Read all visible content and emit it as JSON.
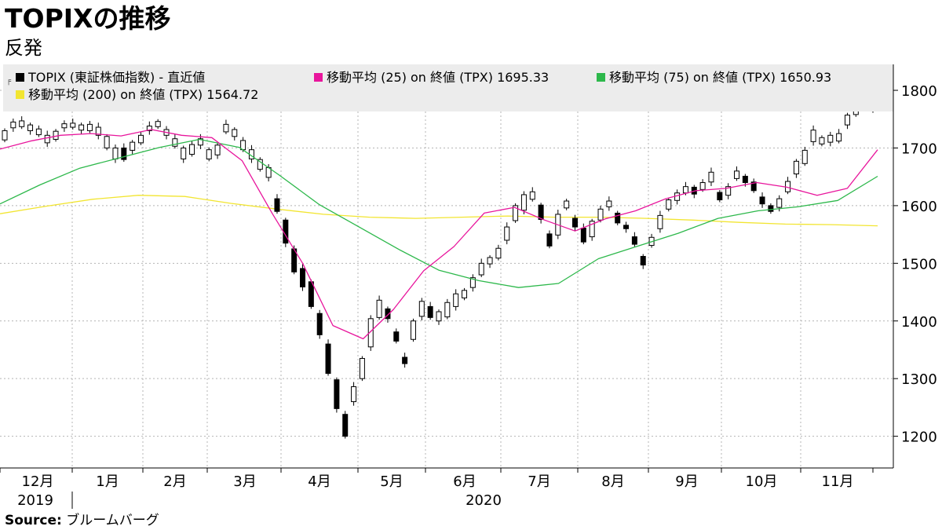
{
  "title": "TOPIXの推移",
  "subtitle": "反発",
  "source": {
    "label": "Source:",
    "name": "ブルームバーグ"
  },
  "colors": {
    "candle": "#000000",
    "ma25": "#e8159c",
    "ma75": "#2db84b",
    "ma200": "#f2e531",
    "grid": "#b4b4b4",
    "legend_bg": "#ececec"
  },
  "legend": [
    {
      "label": "TOPIX (東証株価指数) - 直近値",
      "color": "#000000"
    },
    {
      "label": "移動平均 (25)  on 終値 (TPX) 1695.33",
      "color": "#e8159c"
    },
    {
      "label": "移動平均 (75)  on 終値 (TPX) 1650.93",
      "color": "#2db84b"
    },
    {
      "label": "移動平均 (200)  on 終値 (TPX)  1564.72",
      "color": "#f2e531"
    }
  ],
  "chart_data": {
    "type": "line",
    "title": "TOPIXの推移",
    "subtitle": "反発",
    "x_ticks": [
      "12月",
      "1月",
      "2月",
      "3月",
      "4月",
      "5月",
      "6月",
      "7月",
      "8月",
      "9月",
      "10月",
      "11月"
    ],
    "year_labels": [
      "2019",
      "2020"
    ],
    "y_ticks": [
      1200,
      1300,
      1400,
      1500,
      1600,
      1700,
      1800
    ],
    "ylim": [
      1145,
      1845
    ],
    "y_axis_side": "right",
    "grid": true,
    "legend_position": "top",
    "series": [
      {
        "name": "TOPIX (東証株価指数) - 直近値",
        "style": "candlestick",
        "values": [
          [
            1714,
            1730
          ],
          [
            1735,
            1745
          ],
          [
            1737,
            1747
          ],
          [
            1730,
            1740
          ],
          [
            1723,
            1733
          ],
          [
            1709,
            1722
          ],
          [
            1715,
            1729
          ],
          [
            1735,
            1742
          ],
          [
            1736,
            1743
          ],
          [
            1731,
            1740
          ],
          [
            1730,
            1741
          ],
          [
            1722,
            1736
          ],
          [
            1700,
            1720
          ],
          [
            1681,
            1700
          ],
          [
            1700,
            1680
          ],
          [
            1696,
            1710
          ],
          [
            1709,
            1722
          ],
          [
            1730,
            1738
          ],
          [
            1737,
            1746
          ],
          [
            1722,
            1732
          ],
          [
            1703,
            1716
          ],
          [
            1681,
            1700
          ],
          [
            1689,
            1706
          ],
          [
            1705,
            1716
          ],
          [
            1681,
            1697
          ],
          [
            1688,
            1705
          ],
          [
            1728,
            1741
          ],
          [
            1720,
            1732
          ],
          [
            1697,
            1713
          ],
          [
            1681,
            1697
          ],
          [
            1663,
            1680
          ],
          [
            1649,
            1666
          ],
          [
            1612,
            1590
          ],
          [
            1575,
            1535
          ],
          [
            1525,
            1485
          ],
          [
            1491,
            1459
          ],
          [
            1468,
            1425
          ],
          [
            1413,
            1376
          ],
          [
            1360,
            1309
          ],
          [
            1298,
            1248
          ],
          [
            1238,
            1200
          ],
          [
            1260,
            1286
          ],
          [
            1300,
            1335
          ],
          [
            1355,
            1404
          ],
          [
            1406,
            1436
          ],
          [
            1421,
            1404
          ],
          [
            1381,
            1365
          ],
          [
            1337,
            1326
          ],
          [
            1368,
            1400
          ],
          [
            1408,
            1434
          ],
          [
            1425,
            1406
          ],
          [
            1400,
            1416
          ],
          [
            1407,
            1432
          ],
          [
            1425,
            1447
          ],
          [
            1440,
            1453
          ],
          [
            1458,
            1475
          ],
          [
            1480,
            1500
          ],
          [
            1499,
            1510
          ],
          [
            1509,
            1526
          ],
          [
            1540,
            1563
          ],
          [
            1574,
            1600
          ],
          [
            1592,
            1619
          ],
          [
            1611,
            1624
          ],
          [
            1601,
            1576
          ],
          [
            1551,
            1530
          ],
          [
            1549,
            1585
          ],
          [
            1596,
            1608
          ],
          [
            1578,
            1563
          ],
          [
            1561,
            1537
          ],
          [
            1546,
            1573
          ],
          [
            1575,
            1594
          ],
          [
            1598,
            1608
          ],
          [
            1587,
            1570
          ],
          [
            1566,
            1560
          ],
          [
            1546,
            1533
          ],
          [
            1512,
            1497
          ],
          [
            1531,
            1545
          ],
          [
            1560,
            1583
          ],
          [
            1594,
            1610
          ],
          [
            1609,
            1622
          ],
          [
            1622,
            1633
          ],
          [
            1632,
            1620
          ],
          [
            1628,
            1640
          ],
          [
            1641,
            1658
          ],
          [
            1623,
            1610
          ],
          [
            1618,
            1633
          ],
          [
            1647,
            1660
          ],
          [
            1651,
            1640
          ],
          [
            1641,
            1626
          ],
          [
            1615,
            1603
          ],
          [
            1600,
            1590
          ],
          [
            1597,
            1612
          ],
          [
            1624,
            1642
          ],
          [
            1655,
            1677
          ],
          [
            1673,
            1696
          ],
          [
            1711,
            1731
          ],
          [
            1707,
            1718
          ],
          [
            1710,
            1722
          ],
          [
            1712,
            1725
          ],
          [
            1740,
            1757
          ],
          [
            1758,
            1772
          ],
          [
            1780,
            1790
          ],
          [
            1770,
            1765
          ]
        ]
      },
      {
        "name": "移動平均 (25)  on 終値 (TPX) 1695.33",
        "values": [
          1698,
          1712,
          1722,
          1725,
          1721,
          1732,
          1722,
          1718,
          1678,
          1586,
          1500,
          1392,
          1369,
          1420,
          1487,
          1529,
          1587,
          1597,
          1575,
          1556,
          1577,
          1591,
          1612,
          1626,
          1630,
          1640,
          1632,
          1618,
          1630,
          1697
        ]
      },
      {
        "name": "移動平均 (75)  on 終値 (TPX) 1650.93",
        "values": [
          1603,
          1636,
          1665,
          1683,
          1701,
          1715,
          1701,
          1653,
          1602,
          1563,
          1524,
          1488,
          1470,
          1458,
          1465,
          1508,
          1530,
          1552,
          1578,
          1591,
          1598,
          1609,
          1651
        ]
      },
      {
        "name": "移動平均 (200)  on 終値 (TPX)  1564.72",
        "values": [
          1586,
          1599,
          1611,
          1618,
          1616,
          1604,
          1594,
          1585,
          1580,
          1578,
          1580,
          1582,
          1580,
          1580,
          1578,
          1575,
          1571,
          1568,
          1567,
          1565
        ]
      }
    ]
  }
}
